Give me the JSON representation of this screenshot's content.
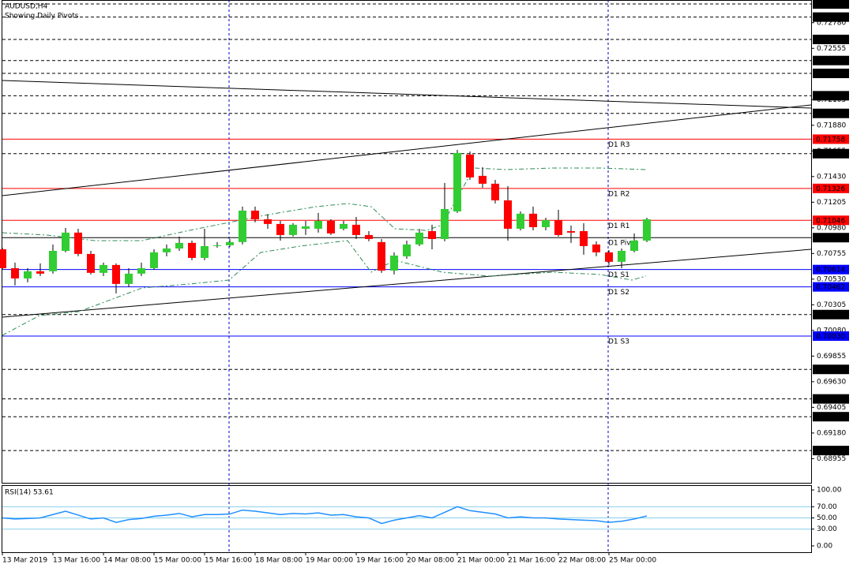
{
  "chart_data": [
    {
      "type": "candlestick",
      "title": "AUDUSD,H4",
      "subtitle": "Showing Daily Pivots",
      "up_color": "#32cd32",
      "down_color": "#ff0000",
      "categories": [
        "13 Mar 2019",
        null,
        null,
        null,
        "13 Mar 16:00",
        null,
        null,
        null,
        "14 Mar 08:00",
        null,
        null,
        null,
        "15 Mar 00:00",
        null,
        null,
        null,
        "15 Mar 16:00",
        null,
        null,
        null,
        "18 Mar 08:00",
        null,
        null,
        null,
        "19 Mar 00:00",
        null,
        null,
        null,
        "19 Mar 16:00",
        null,
        null,
        null,
        "20 Mar 08:00",
        null,
        null,
        null,
        "21 Mar 00:00",
        null,
        null,
        null,
        "21 Mar 16:00",
        null,
        null,
        null,
        "22 Mar 08:00",
        null,
        null,
        null,
        "25 Mar 00:00",
        null,
        null,
        null
      ],
      "open": [
        0.70792,
        0.70626,
        0.70536,
        0.70599,
        0.70599,
        0.70778,
        0.70938,
        0.70751,
        0.70585,
        0.70654,
        0.70488,
        0.70578,
        0.70626,
        0.70765,
        0.70799,
        0.70848,
        0.70716,
        0.7082,
        0.70827,
        0.70855,
        0.71131,
        0.71055,
        0.71014,
        0.70917,
        0.70972,
        0.70972,
        0.71041,
        0.70972,
        0.71007,
        0.70917,
        0.70855,
        0.70605,
        0.7073,
        0.70834,
        0.70951,
        0.70882,
        0.71124,
        0.71623,
        0.71436,
        0.71367,
        0.71221,
        0.70972,
        0.71104,
        0.70986,
        0.71048,
        0.70951,
        0.70951,
        0.70834,
        0.70765,
        0.70682,
        0.70778,
        0.70868
      ],
      "high": [
        0.70806,
        0.70675,
        0.70626,
        0.70668,
        0.70834,
        0.70979,
        0.70972,
        0.70778,
        0.70675,
        0.70668,
        0.70626,
        0.70675,
        0.70792,
        0.70834,
        0.70903,
        0.70868,
        0.70972,
        0.70855,
        0.70882,
        0.71166,
        0.71166,
        0.71097,
        0.71041,
        0.71021,
        0.71041,
        0.71111,
        0.71055,
        0.71041,
        0.71076,
        0.70951,
        0.70882,
        0.70765,
        0.70868,
        0.70972,
        0.71007,
        0.71374,
        0.71664,
        0.7165,
        0.71512,
        0.71401,
        0.71346,
        0.71124,
        0.71166,
        0.71069,
        0.71138,
        0.71,
        0.71021,
        0.70862,
        0.70785,
        0.70799,
        0.70931,
        0.71069
      ],
      "low": [
        0.70612,
        0.70474,
        0.70502,
        0.70557,
        0.70578,
        0.70765,
        0.7073,
        0.70571,
        0.70557,
        0.70405,
        0.7046,
        0.70557,
        0.70612,
        0.7073,
        0.70778,
        0.70696,
        0.70696,
        0.70806,
        0.70813,
        0.70834,
        0.71028,
        0.70972,
        0.70868,
        0.70903,
        0.70917,
        0.70938,
        0.70917,
        0.70958,
        0.70882,
        0.70862,
        0.70585,
        0.70571,
        0.70709,
        0.7082,
        0.70792,
        0.70862,
        0.71111,
        0.71401,
        0.71332,
        0.71194,
        0.70868,
        0.70958,
        0.70958,
        0.70958,
        0.70903,
        0.70848,
        0.70744,
        0.7073,
        0.70654,
        0.70626,
        0.70765,
        0.70855
      ],
      "close": [
        0.70626,
        0.70536,
        0.70599,
        0.70578,
        0.70778,
        0.70938,
        0.70751,
        0.70585,
        0.70654,
        0.70488,
        0.70578,
        0.70626,
        0.70765,
        0.70799,
        0.70848,
        0.70716,
        0.7082,
        0.70827,
        0.70855,
        0.71131,
        0.71055,
        0.71014,
        0.70917,
        0.71007,
        0.70993,
        0.71041,
        0.70931,
        0.71014,
        0.70917,
        0.70882,
        0.70605,
        0.70737,
        0.70834,
        0.70938,
        0.70882,
        0.71145,
        0.71637,
        0.71422,
        0.71367,
        0.71221,
        0.70972,
        0.71104,
        0.70986,
        0.71048,
        0.70917,
        0.70938,
        0.7082,
        0.70765,
        0.70682,
        0.70778,
        0.70868,
        0.71055
      ],
      "ylim": [
        0.68743,
        0.72979
      ],
      "yticks": [
        {
          "value": 0.7278,
          "label": "0.72780"
        },
        0.72555,
        0.72105,
        {
          "value": 0.7188,
          "label": "0.71880"
        },
        0.71655,
        {
          "value": 0.7143,
          "label": "0.71430"
        },
        0.71205,
        {
          "value": 0.7098,
          "label": "0.70980"
        },
        0.70755,
        {
          "value": 0.7053,
          "label": "0.70530"
        },
        0.70305,
        {
          "value": 0.7008,
          "label": "0.70080"
        },
        0.69855,
        {
          "value": 0.6963,
          "label": "0.69630"
        },
        0.69405,
        {
          "value": 0.6918,
          "label": "0.69180"
        },
        0.68955
      ],
      "levels": [
        {
          "value": 0.72944,
          "color": "#000000",
          "style": "dashed"
        },
        {
          "value": 0.72829,
          "color": "#000000",
          "style": "dashed"
        },
        {
          "value": 0.72633,
          "color": "#000000",
          "style": "dashed"
        },
        {
          "value": 0.72448,
          "color": "#000000",
          "style": "dashed"
        },
        {
          "value": 0.72335,
          "color": "#000000",
          "style": "dashed"
        },
        {
          "value": 0.72139,
          "color": "#000000",
          "style": "dashed"
        },
        {
          "value": 0.71984,
          "color": "#000000",
          "style": "dashed"
        },
        {
          "value": 0.71758,
          "color": "#ff0000",
          "style": "solid",
          "name": "D1 R3"
        },
        {
          "value": 0.71631,
          "color": "#000000",
          "style": "dashed"
        },
        {
          "value": 0.71326,
          "color": "#ff0000",
          "style": "solid",
          "name": "D1 R2"
        },
        {
          "value": 0.71046,
          "color": "#ff0000",
          "style": "solid",
          "name": "D1 R1"
        },
        {
          "value": 0.70894,
          "color": "#000000",
          "style": "solid",
          "name": "D1 Pivot"
        },
        {
          "value": 0.70614,
          "color": "#0000ff",
          "style": "solid",
          "name": "D1 S1"
        },
        {
          "value": 0.70462,
          "color": "#0000ff",
          "style": "solid",
          "name": "D1 S2"
        },
        {
          "value": 0.70219,
          "color": "#000000",
          "style": "dashed"
        },
        {
          "value": 0.7003,
          "label": "0.70030",
          "color": "#0000ff",
          "style": "solid",
          "name": "D1 S3"
        },
        {
          "value": 0.69738,
          "color": "#000000",
          "style": "dashed"
        },
        {
          "value": 0.69479,
          "color": "#000000",
          "style": "dashed"
        },
        {
          "value": 0.69323,
          "color": "#000000",
          "style": "dashed"
        },
        {
          "value": 0.69026,
          "color": "#000000",
          "style": "dashed"
        }
      ]
    },
    {
      "type": "line",
      "title": "RSI(14) 53.61",
      "color": "#1e90ff",
      "level_color": "#87ceeb",
      "values": [
        50,
        48,
        49,
        50,
        56,
        62,
        55,
        48,
        50,
        42,
        47,
        49,
        53,
        55,
        58,
        52,
        56,
        56,
        57,
        64,
        62,
        59,
        56,
        58,
        57,
        59,
        55,
        56,
        52,
        50,
        40,
        46,
        50,
        54,
        50,
        60,
        70,
        63,
        60,
        57,
        50,
        52,
        50,
        50,
        48,
        47,
        46,
        45,
        42,
        44,
        48,
        53.61
      ],
      "ylim": [
        -11.3,
        108.5
      ],
      "yticks": [
        {
          "value": 100,
          "label": "100.00"
        },
        {
          "value": 70,
          "label": "70.00"
        },
        {
          "value": 50,
          "label": "50.00"
        },
        {
          "value": 30,
          "label": "30.00"
        },
        {
          "value": 0,
          "label": "0.00"
        }
      ],
      "levels": [
        70,
        50,
        30
      ]
    }
  ]
}
